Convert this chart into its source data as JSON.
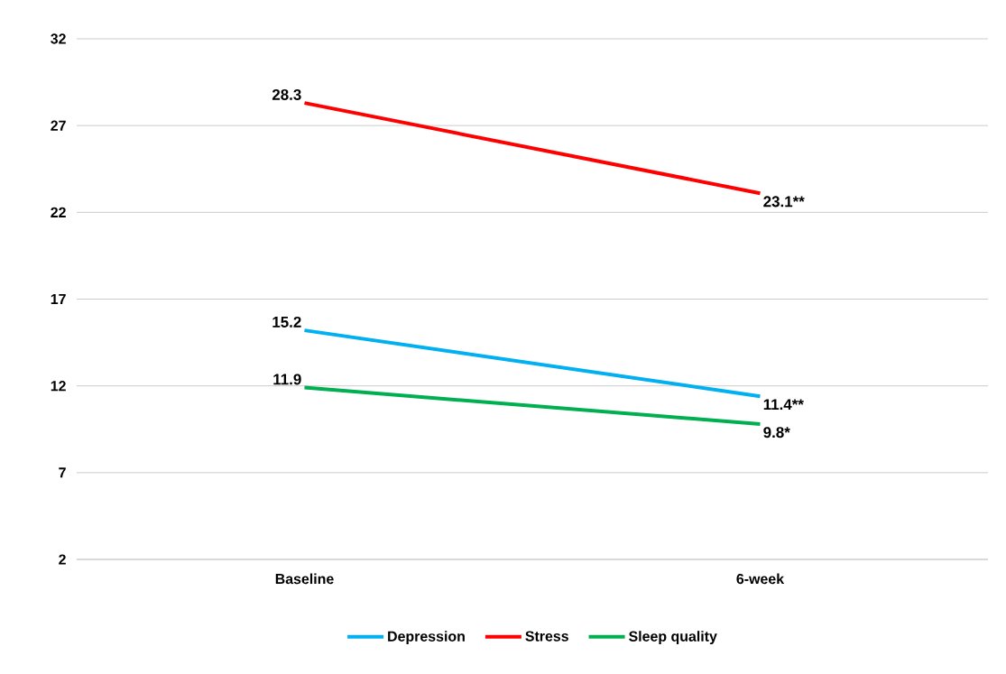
{
  "chart_data": {
    "type": "line",
    "categories": [
      "Baseline",
      "6-week"
    ],
    "series": [
      {
        "name": "Depression",
        "color": "#00b0f0",
        "values": [
          15.2,
          11.4
        ],
        "value_labels": [
          "15.2",
          "11.4**"
        ]
      },
      {
        "name": "Stress",
        "color": "#ff0000",
        "values": [
          28.3,
          23.1
        ],
        "value_labels": [
          "28.3",
          "23.1**"
        ]
      },
      {
        "name": "Sleep quality",
        "color": "#00b050",
        "values": [
          11.9,
          9.8
        ],
        "value_labels": [
          "11.9",
          "9.8*"
        ]
      }
    ],
    "ylim": [
      2,
      32
    ],
    "yticks": [
      2,
      7,
      12,
      17,
      22,
      27,
      32
    ],
    "grid": "y",
    "legend": "bottom",
    "marker": "none",
    "line_style": "solid"
  }
}
